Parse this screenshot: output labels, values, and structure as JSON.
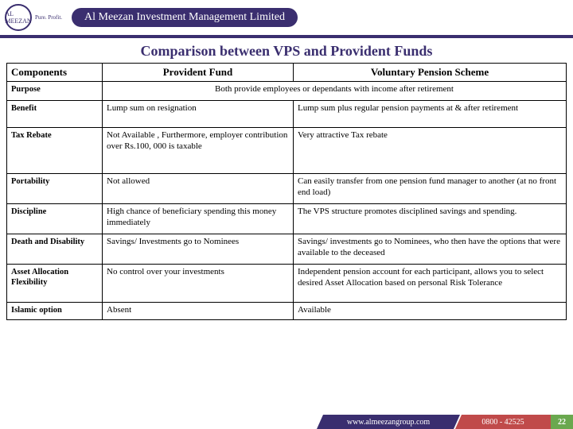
{
  "banner": {
    "logo_text": "AL MEEZAN",
    "logo_sub": "Pure. Profit.",
    "company_name": "Al Meezan Investment Management Limited"
  },
  "title": "Comparison between VPS and Provident Funds",
  "table": {
    "headers": {
      "col0": "Components",
      "col1": "Provident Fund",
      "col2": "Voluntary Pension Scheme"
    },
    "rows": [
      {
        "label": "Purpose",
        "span": "Both provide employees or dependants with income after retirement"
      },
      {
        "label": "Benefit",
        "c1": "Lump sum on resignation",
        "c2": "Lump sum plus regular pension payments at & after retirement"
      },
      {
        "label": "Tax Rebate",
        "c1": "Not Available , Furthermore, employer contribution over Rs.100, 000 is taxable",
        "c2": "Very attractive Tax rebate"
      },
      {
        "label": "Portability",
        "c1": "Not allowed",
        "c2": "Can easily transfer from one pension fund manager to another (at no front end load)"
      },
      {
        "label": "Discipline",
        "c1": "High chance of beneficiary spending this money immediately",
        "c2": "The VPS structure promotes disciplined savings and spending."
      },
      {
        "label": "Death and Disability",
        "c1": "Savings/ Investments go to Nominees",
        "c2": "Savings/ investments go to Nominees, who then have the options that were available to the deceased"
      },
      {
        "label": "Asset Allocation Flexibility",
        "c1": "No control over your investments",
        "c2": "Independent pension account for each participant, allows you to select desired Asset Allocation based on personal Risk Tolerance"
      },
      {
        "label": "Islamic option",
        "c1": "Absent",
        "c2": "Available"
      }
    ]
  },
  "footer": {
    "url": "www.almeezangroup.com",
    "phone": "0800 - 42525",
    "page": "22"
  },
  "row_heights": [
    "24px",
    "34px",
    "58px",
    "38px",
    "38px",
    "38px",
    "48px",
    "22px"
  ]
}
